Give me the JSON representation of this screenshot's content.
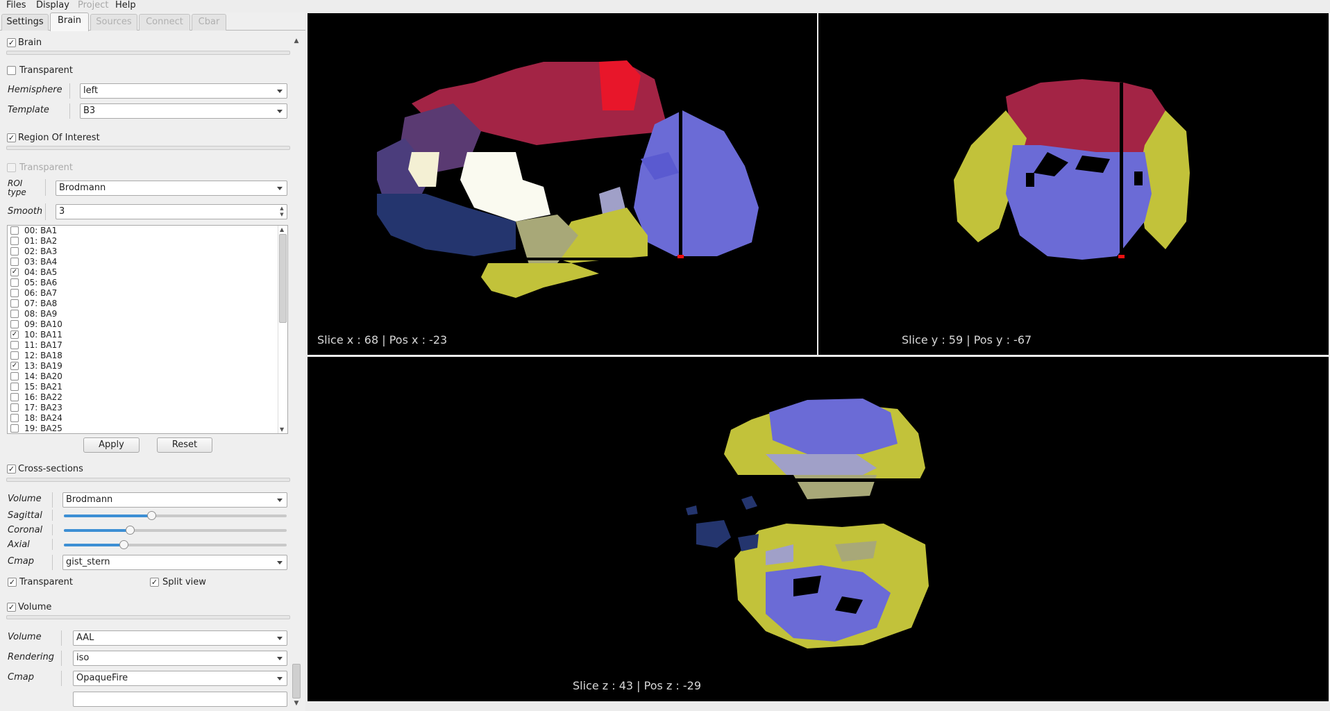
{
  "menubar": {
    "items": [
      {
        "label": "Files",
        "enabled": true
      },
      {
        "label": "Display",
        "enabled": true
      },
      {
        "label": "Project",
        "enabled": false
      },
      {
        "label": "Help",
        "enabled": true
      }
    ]
  },
  "tabs": [
    {
      "label": "Settings",
      "active": false,
      "enabled": true
    },
    {
      "label": "Brain",
      "active": true,
      "enabled": true
    },
    {
      "label": "Sources",
      "active": false,
      "enabled": false
    },
    {
      "label": "Connect",
      "active": false,
      "enabled": false
    },
    {
      "label": "Cbar",
      "active": false,
      "enabled": false
    }
  ],
  "brain": {
    "section_label": "Brain",
    "section_checked": true,
    "transparent_label": "Transparent",
    "transparent_checked": false,
    "hemisphere_label": "Hemisphere",
    "hemisphere_value": "left",
    "template_label": "Template",
    "template_value": "B3"
  },
  "roi": {
    "section_label": "Region Of Interest",
    "section_checked": true,
    "transparent_label": "Transparent",
    "roi_type_label_1": "ROI",
    "roi_type_label_2": "type",
    "roi_type_value": "Brodmann",
    "smooth_label": "Smooth",
    "smooth_value": "3",
    "items": [
      {
        "label": "00: BA1",
        "checked": false
      },
      {
        "label": "01: BA2",
        "checked": false
      },
      {
        "label": "02: BA3",
        "checked": false
      },
      {
        "label": "03: BA4",
        "checked": false
      },
      {
        "label": "04: BA5",
        "checked": true
      },
      {
        "label": "05: BA6",
        "checked": false
      },
      {
        "label": "06: BA7",
        "checked": false
      },
      {
        "label": "07: BA8",
        "checked": false
      },
      {
        "label": "08: BA9",
        "checked": false
      },
      {
        "label": "09: BA10",
        "checked": false
      },
      {
        "label": "10: BA11",
        "checked": true
      },
      {
        "label": "11: BA17",
        "checked": false
      },
      {
        "label": "12: BA18",
        "checked": false
      },
      {
        "label": "13: BA19",
        "checked": true
      },
      {
        "label": "14: BA20",
        "checked": false
      },
      {
        "label": "15: BA21",
        "checked": false
      },
      {
        "label": "16: BA22",
        "checked": false
      },
      {
        "label": "17: BA23",
        "checked": false
      },
      {
        "label": "18: BA24",
        "checked": false
      },
      {
        "label": "19: BA25",
        "checked": false
      }
    ],
    "apply_label": "Apply",
    "reset_label": "Reset"
  },
  "cross": {
    "section_label": "Cross-sections",
    "section_checked": true,
    "volume_label": "Volume",
    "volume_value": "Brodmann",
    "sagittal_label": "Sagittal",
    "sagittal_level": 0.39,
    "coronal_label": "Coronal",
    "coronal_level": 0.29,
    "axial_label": "Axial",
    "axial_level": 0.26,
    "cmap_label": "Cmap",
    "cmap_value": "gist_stern",
    "transparent_label": "Transparent",
    "transparent_checked": true,
    "split_label": "Split view",
    "split_checked": true
  },
  "volume": {
    "section_label": "Volume",
    "section_checked": true,
    "volume_label": "Volume",
    "volume_value": "AAL",
    "rendering_label": "Rendering",
    "rendering_value": "iso",
    "cmap_label": "Cmap",
    "cmap_value": "OpaqueFire"
  },
  "views": {
    "sagittal_caption": "Slice x : 68 | Pos x : -23",
    "coronal_caption": "Slice y : 59 | Pos y : -67",
    "axial_caption": "Slice z : 43 | Pos z : -29"
  },
  "colors": {
    "accent": "#3d8fd4",
    "roi_crimson": "#a32445",
    "roi_periwinkle": "#6b6bd6",
    "roi_olive": "#c2c23a",
    "roi_navy": "#24356e",
    "roi_plum": "#5a3a72"
  }
}
